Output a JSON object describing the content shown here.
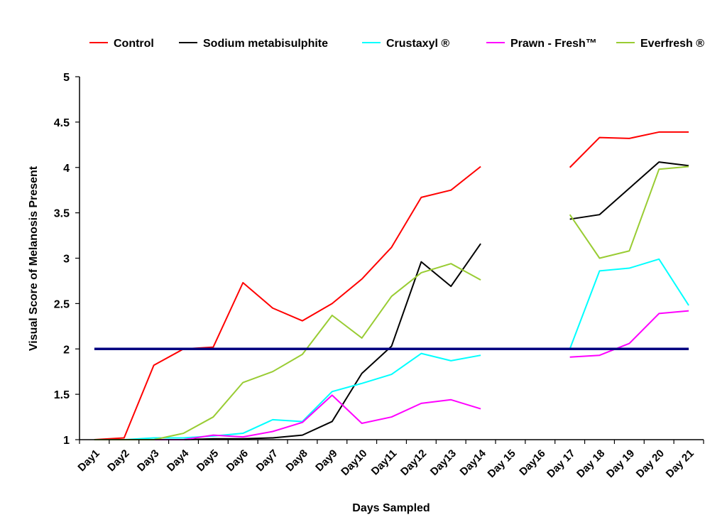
{
  "chart_data": {
    "type": "line",
    "xlabel": "Days Sampled",
    "ylabel": "Visual Score of Melanosis Present",
    "ylim": [
      1,
      5
    ],
    "yticks": [
      "1",
      "1.5",
      "2",
      "2.5",
      "3",
      "3.5",
      "4",
      "4.5",
      "5"
    ],
    "ytick_values": [
      1,
      1.5,
      2,
      2.5,
      3,
      3.5,
      4,
      4.5,
      5
    ],
    "categories": [
      "Day1",
      "Day2",
      "Day3",
      "Day4",
      "Day5",
      "Day6",
      "Day7",
      "Day8",
      "Day9",
      "Day10",
      "Day11",
      "Day12",
      "Day13",
      "Day14",
      "Day 15",
      "Day16",
      "Day 17",
      "Day 18",
      "Day 19",
      "Day 20",
      "Day 21"
    ],
    "grid": false,
    "legend_position": "top",
    "series": [
      {
        "name": "Control",
        "color": "#ff0000",
        "values": [
          1.0,
          1.02,
          1.82,
          2.0,
          2.02,
          2.73,
          2.45,
          2.31,
          2.5,
          2.77,
          3.12,
          3.67,
          3.75,
          4.01,
          null,
          null,
          4.0,
          4.33,
          4.32,
          4.39,
          4.39
        ]
      },
      {
        "name": "Sodium metabisulphite",
        "color": "#000000",
        "values": [
          1.0,
          1.0,
          1.0,
          1.0,
          1.01,
          1.01,
          1.02,
          1.05,
          1.2,
          1.73,
          2.03,
          2.96,
          2.69,
          3.16,
          null,
          null,
          3.43,
          3.48,
          3.77,
          4.06,
          4.02
        ]
      },
      {
        "name": "Crustaxyl ®",
        "color": "#00ffff",
        "values": [
          1.0,
          1.0,
          1.02,
          1.02,
          1.04,
          1.07,
          1.22,
          1.2,
          1.53,
          1.62,
          1.72,
          1.95,
          1.87,
          1.93,
          null,
          null,
          2.0,
          2.86,
          2.89,
          2.99,
          2.48
        ]
      },
      {
        "name": "Prawn - Fresh™",
        "color": "#ff00ff",
        "values": [
          1.0,
          1.0,
          1.0,
          1.0,
          1.05,
          1.03,
          1.09,
          1.19,
          1.49,
          1.18,
          1.25,
          1.4,
          1.44,
          1.34,
          null,
          null,
          1.91,
          1.93,
          2.06,
          2.39,
          2.42
        ]
      },
      {
        "name": "Everfresh ®",
        "color": "#99cc33",
        "values": [
          1.0,
          1.0,
          1.0,
          1.07,
          1.25,
          1.63,
          1.75,
          1.94,
          2.37,
          2.12,
          2.58,
          2.84,
          2.94,
          2.76,
          null,
          null,
          3.48,
          3.0,
          3.08,
          3.98,
          4.01
        ]
      }
    ],
    "reference_line": {
      "y": 2,
      "color": "#000080"
    }
  }
}
